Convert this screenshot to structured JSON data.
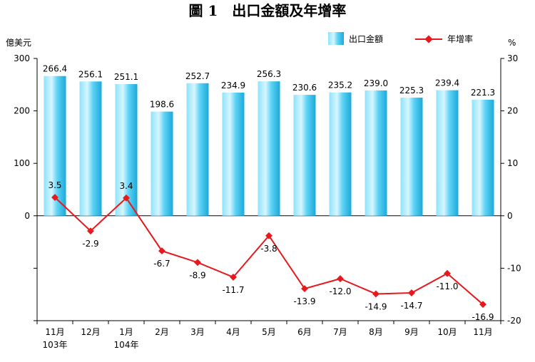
{
  "chart_data": {
    "type": "bar+line",
    "title": "圖 1　出口金額及年增率",
    "left_unit": "億美元",
    "right_unit": "%",
    "categories": [
      "11月",
      "12月",
      "1月",
      "2月",
      "3月",
      "4月",
      "5月",
      "6月",
      "7月",
      "8月",
      "9月",
      "10月",
      "11月"
    ],
    "category_years": [
      "103年",
      "",
      "104年",
      "",
      "",
      "",
      "",
      "",
      "",
      "",
      "",
      "",
      ""
    ],
    "series": [
      {
        "name": "出口金額",
        "kind": "bar",
        "axis": "left",
        "color": "#39c4ee",
        "values": [
          266.4,
          256.1,
          251.1,
          198.6,
          252.7,
          234.9,
          256.3,
          230.6,
          235.2,
          239.0,
          225.3,
          239.4,
          221.3
        ],
        "labels": [
          "266.4",
          "256.1",
          "251.1",
          "198.6",
          "252.7",
          "234.9",
          "256.3",
          "230.6",
          "235.2",
          "239.0",
          "225.3",
          "239.4",
          "221.3"
        ]
      },
      {
        "name": "年增率",
        "kind": "line",
        "axis": "right",
        "color": "#e8191c",
        "values": [
          3.5,
          -2.9,
          3.4,
          -6.7,
          -8.9,
          -11.7,
          -3.8,
          -13.9,
          -12.0,
          -14.9,
          -14.7,
          -11.0,
          -16.9
        ],
        "labels": [
          "3.5",
          "-2.9",
          "3.4",
          "-6.7",
          "-8.9",
          "-11.7",
          "-3.8",
          "-13.9",
          "-12.0",
          "-14.9",
          "-14.7",
          "-11.0",
          "-16.9"
        ]
      }
    ],
    "left_axis": {
      "ylim": [
        -200,
        300
      ],
      "ticks": [
        0,
        100,
        200,
        300
      ],
      "tick_labels": [
        "0",
        "100",
        "200",
        "300"
      ]
    },
    "right_axis": {
      "ylim": [
        -20,
        30
      ],
      "ticks": [
        -20,
        -10,
        0,
        10,
        20,
        30
      ],
      "tick_labels": [
        "-20",
        "-10",
        "0",
        "10",
        "20",
        "30"
      ]
    },
    "legend_position": "top-right",
    "grid": false
  }
}
